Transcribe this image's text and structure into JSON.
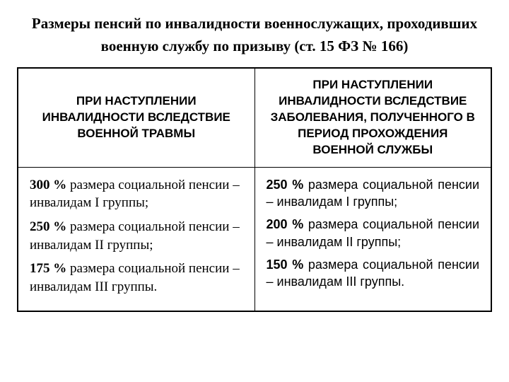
{
  "title": "Размеры пенсий по инвалидности военнослужащих, проходивших военную службу по призыву (ст. 15 ФЗ № 166)",
  "table": {
    "headers": {
      "col1": "ПРИ НАСТУПЛЕНИИ ИНВАЛИДНОСТИ ВСЛЕДСТВИЕ ВОЕННОЙ ТРАВМЫ",
      "col2": "ПРИ НАСТУПЛЕНИИ ИНВАЛИДНОСТИ ВСЛЕДСТВИЕ ЗАБОЛЕВАНИЯ, ПОЛУЧЕННОГО В ПЕРИОД ПРОХОЖДЕНИЯ ВОЕННОЙ СЛУЖБЫ"
    },
    "left": {
      "row1": {
        "pct": "300 %",
        "text": " размера социальной пенсии – инвалидам I группы;"
      },
      "row2": {
        "pct": "250 %",
        "text": " размера социальной пенсии – инвалидам II группы;"
      },
      "row3": {
        "pct": "175 %",
        "text": " размера социальной пенсии – инвалидам III группы."
      }
    },
    "right": {
      "row1": {
        "pct": "250 %",
        "text": " размера социальной пенсии – инвалидам I группы;"
      },
      "row2": {
        "pct": "200 %",
        "text": " размера социальной пенсии – инвалидам II группы;"
      },
      "row3": {
        "pct": "150 %",
        "text": " размера социальной пенсии – инвалидам III группы."
      }
    }
  },
  "styling": {
    "border_color": "#000000",
    "background_color": "#ffffff",
    "title_fontsize": 21,
    "header_fontsize": 17,
    "body_fontsize": 19,
    "header_font": "Arial",
    "left_body_font": "Times New Roman",
    "right_body_font": "Arial"
  }
}
